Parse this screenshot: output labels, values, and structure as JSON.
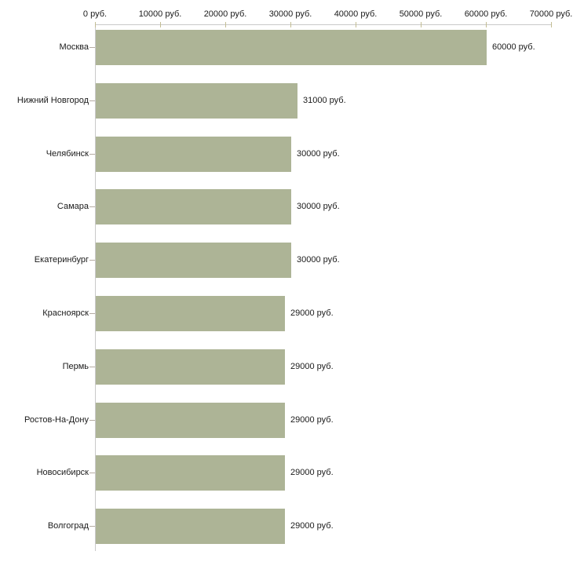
{
  "chart_data": {
    "type": "bar",
    "orientation": "horizontal",
    "title": "",
    "xlabel": "",
    "ylabel": "",
    "unit": "руб.",
    "grid": false,
    "legend": false,
    "xlim": [
      0,
      70000
    ],
    "categories": [
      "Москва",
      "Нижний Новгород",
      "Челябинск",
      "Самара",
      "Екатеринбург",
      "Красноярск",
      "Пермь",
      "Ростов-На-Дону",
      "Новосибирск",
      "Волгоград"
    ],
    "values": [
      60000,
      31000,
      30000,
      30000,
      30000,
      29000,
      29000,
      29000,
      29000,
      29000
    ],
    "value_labels": [
      "60000 руб.",
      "31000 руб.",
      "30000 руб.",
      "30000 руб.",
      "30000 руб.",
      "29000 руб.",
      "29000 руб.",
      "29000 руб.",
      "29000 руб.",
      "29000 руб."
    ],
    "x_ticks": [
      0,
      10000,
      20000,
      30000,
      40000,
      50000,
      60000,
      70000
    ],
    "x_tick_labels": [
      "0 руб.",
      "10000 руб.",
      "20000 руб.",
      "30000 руб.",
      "40000 руб.",
      "50000 руб.",
      "60000 руб.",
      "70000 руб."
    ],
    "colors": {
      "bar": "#adb496",
      "axis_line": "#c9c9c9",
      "x_tick_mark": "#c3bd93",
      "category_tick_mark": "#b5aca3",
      "text": "#1a1a1a",
      "background": "#ffffff"
    }
  }
}
